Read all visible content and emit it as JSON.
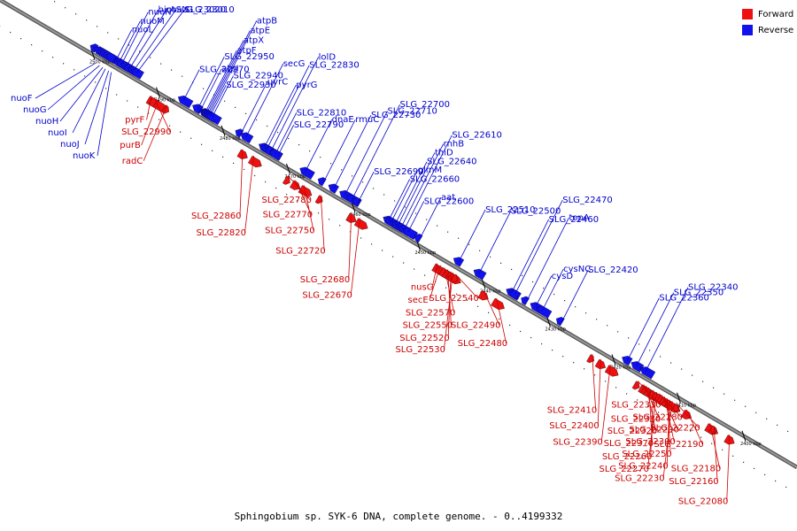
{
  "legend": {
    "forward": {
      "label": "Forward",
      "color": "#ee1111"
    },
    "reverse": {
      "label": "Reverse",
      "color": "#1111ee"
    }
  },
  "caption": "Sphingobium sp. SYK-6 DNA, complete genome. - 0..4199332",
  "colors": {
    "backbone": "#999999",
    "label_forward": "#cc0000",
    "label_reverse": "#0000cc",
    "tick": "#000000"
  },
  "scale": {
    "unit": "kbp",
    "start_kbp": 2500,
    "end_kbp": 2400,
    "ticks": [
      {
        "label": "2500 kbp",
        "kbp": 2500
      },
      {
        "label": "2490 kbp",
        "kbp": 2490
      },
      {
        "label": "2480 kbp",
        "kbp": 2480
      },
      {
        "label": "2470 kbp",
        "kbp": 2470
      },
      {
        "label": "2460 kbp",
        "kbp": 2460
      },
      {
        "label": "2450 kbp",
        "kbp": 2450
      },
      {
        "label": "2440 kbp",
        "kbp": 2440
      },
      {
        "label": "2430 kbp",
        "kbp": 2430
      },
      {
        "label": "2420 kbp",
        "kbp": 2420
      },
      {
        "label": "2410 kbp",
        "kbp": 2410
      },
      {
        "label": "2400 kbp",
        "kbp": 2400
      }
    ]
  },
  "reverse_genes": [
    {
      "label": "nuoL",
      "kbp": 2496.5
    },
    {
      "label": "nuoM",
      "kbp": 2496.0
    },
    {
      "label": "nuoN",
      "kbp": 2495.6
    },
    {
      "label": "birA",
      "kbp": 2494.9
    },
    {
      "label": "coaX",
      "kbp": 2494.4
    },
    {
      "label": "SLG_23020",
      "kbp": 2493.8
    },
    {
      "label": "SLG_23010",
      "kbp": 2493.3
    },
    {
      "label": "SLG_22970",
      "kbp": 2486.1
    },
    {
      "label": "atpI",
      "kbp": 2483.5
    },
    {
      "label": "SLG_22950",
      "kbp": 2483.9
    },
    {
      "label": "atpF",
      "kbp": 2482.8
    },
    {
      "label": "atpX",
      "kbp": 2482.6
    },
    {
      "label": "atpE",
      "kbp": 2482.4
    },
    {
      "label": "atpB",
      "kbp": 2482.2
    },
    {
      "label": "SLG_22930",
      "kbp": 2482.0
    },
    {
      "label": "SLG_22940",
      "kbp": 2481.7
    },
    {
      "label": "uvrC",
      "kbp": 2477.3
    },
    {
      "label": "pyrG",
      "kbp": 2473.7
    },
    {
      "label": "secG",
      "kbp": 2476.5
    },
    {
      "label": "SLG_22830",
      "kbp": 2473.3
    },
    {
      "label": "lolD",
      "kbp": 2472.7
    },
    {
      "label": "SLG_22790",
      "kbp": 2471.6
    },
    {
      "label": "SLG_22810",
      "kbp": 2472.0
    },
    {
      "label": "dnaE",
      "kbp": 2467.4
    },
    {
      "label": "rmuC",
      "kbp": 2464.6
    },
    {
      "label": "SLG_22730",
      "kbp": 2463.0
    },
    {
      "label": "SLG_22710",
      "kbp": 2461.3
    },
    {
      "label": "SLG_22700",
      "kbp": 2460.2
    },
    {
      "label": "SLG_22690",
      "kbp": 2459.3
    },
    {
      "label": "SLG_22660",
      "kbp": 2454.6
    },
    {
      "label": "glmM",
      "kbp": 2454.2
    },
    {
      "label": "SLG_22640",
      "kbp": 2453.6
    },
    {
      "label": "thiD",
      "kbp": 2453.2
    },
    {
      "label": "rnhB",
      "kbp": 2452.7
    },
    {
      "label": "SLG_22610",
      "kbp": 2452.2
    },
    {
      "label": "SLG_22600",
      "kbp": 2451.6
    },
    {
      "label": "aat",
      "kbp": 2449.8
    },
    {
      "label": "SLG_22510",
      "kbp": 2443.8
    },
    {
      "label": "SLG_22500",
      "kbp": 2440.7
    },
    {
      "label": "SLG_22460",
      "kbp": 2435.7
    },
    {
      "label": "topA",
      "kbp": 2433.4
    },
    {
      "label": "SLG_22470",
      "kbp": 2435.2
    },
    {
      "label": "cysD",
      "kbp": 2432.0
    },
    {
      "label": "cysNC",
      "kbp": 2431.0
    },
    {
      "label": "SLG_22420",
      "kbp": 2428.0
    },
    {
      "label": "SLG_22360",
      "kbp": 2417.9
    },
    {
      "label": "SLG_22350",
      "kbp": 2416.5
    },
    {
      "label": "SLG_22340",
      "kbp": 2415.1
    },
    {
      "label": "nuoF",
      "kbp": 2499.6
    },
    {
      "label": "nuoG",
      "kbp": 2499.0
    },
    {
      "label": "nuoH",
      "kbp": 2498.5
    },
    {
      "label": "nuoI",
      "kbp": 2498.1
    },
    {
      "label": "nuoJ",
      "kbp": 2497.6
    },
    {
      "label": "nuoK",
      "kbp": 2497.2
    }
  ],
  "forward_genes": [
    {
      "label": "pyrF",
      "kbp": 2491.0
    },
    {
      "label": "SLG_22990",
      "kbp": 2490.6
    },
    {
      "label": "purB",
      "kbp": 2489.9
    },
    {
      "label": "radC",
      "kbp": 2488.6
    },
    {
      "label": "SLG_22860",
      "kbp": 2477.0
    },
    {
      "label": "SLG_22820",
      "kbp": 2475.3
    },
    {
      "label": "SLG_22780",
      "kbp": 2470.0
    },
    {
      "label": "SLG_22770",
      "kbp": 2468.9
    },
    {
      "label": "SLG_22750",
      "kbp": 2467.6
    },
    {
      "label": "SLG_22720",
      "kbp": 2465.0
    },
    {
      "label": "SLG_22680",
      "kbp": 2460.3
    },
    {
      "label": "SLG_22670",
      "kbp": 2459.0
    },
    {
      "label": "nusG",
      "kbp": 2447.1
    },
    {
      "label": "secE",
      "kbp": 2446.6
    },
    {
      "label": "SLG_22570",
      "kbp": 2446.0
    },
    {
      "label": "SLG_22550",
      "kbp": 2445.5
    },
    {
      "label": "SLG_22520",
      "kbp": 2445.0
    },
    {
      "label": "SLG_22530",
      "kbp": 2444.7
    },
    {
      "label": "SLG_22540",
      "kbp": 2444.3
    },
    {
      "label": "SLG_22490",
      "kbp": 2440.0
    },
    {
      "label": "SLG_22480",
      "kbp": 2438.0
    },
    {
      "label": "SLG_22410",
      "kbp": 2423.3
    },
    {
      "label": "SLG_22400",
      "kbp": 2422.0
    },
    {
      "label": "SLG_22390",
      "kbp": 2420.5
    },
    {
      "label": "SLG_22330",
      "kbp": 2416.3
    },
    {
      "label": "SLG_22380",
      "kbp": 2415.4
    },
    {
      "label": "SLG_22320",
      "kbp": 2415.0
    },
    {
      "label": "SLG_22370",
      "kbp": 2414.6
    },
    {
      "label": "SLG_22260",
      "kbp": 2413.9
    },
    {
      "label": "SLG_22270",
      "kbp": 2413.4
    },
    {
      "label": "SLG_22280",
      "kbp": 2413.0
    },
    {
      "label": "SLG_22290",
      "kbp": 2412.6
    },
    {
      "label": "SLG_22300",
      "kbp": 2412.2
    },
    {
      "label": "SLG_22250",
      "kbp": 2411.8
    },
    {
      "label": "SLG_22240",
      "kbp": 2411.4
    },
    {
      "label": "SLG_22230",
      "kbp": 2411.0
    },
    {
      "label": "SLG_22220",
      "kbp": 2410.3
    },
    {
      "label": "SLG_22190",
      "kbp": 2408.8
    },
    {
      "label": "SLG_22180",
      "kbp": 2405.2
    },
    {
      "label": "SLG_22160",
      "kbp": 2404.6
    },
    {
      "label": "SLG_22080",
      "kbp": 2402.2
    }
  ]
}
